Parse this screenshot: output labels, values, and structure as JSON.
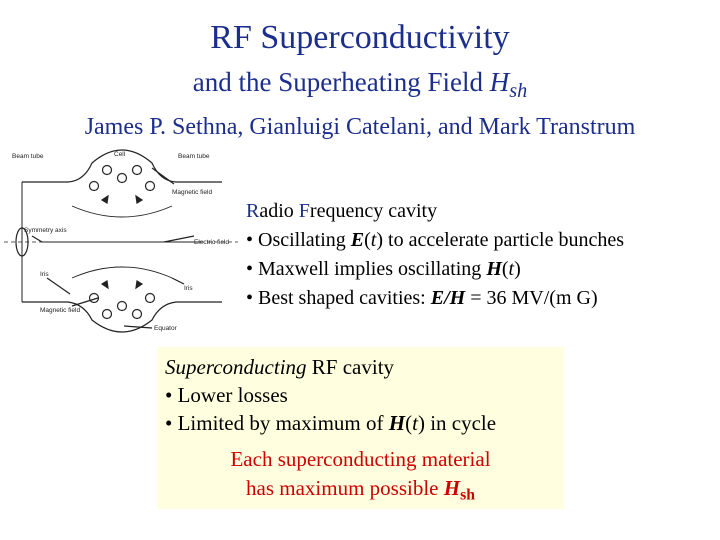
{
  "title": "RF Superconductivity",
  "subtitle": {
    "text": "and the Superheating Field ",
    "symbol": "H",
    "symbol_sub": "sh"
  },
  "authors": "James P. Sethna, Gianluigi Catelani, and Mark Transtrum",
  "diagram_labels": {
    "beam_tube_left": "Beam tube",
    "cell": "Cell",
    "beam_tube_right": "Beam tube",
    "magnetic_field_right": "Magnetic field",
    "symmetry_axis": "Symmetry axis",
    "electric_field": "Electric field",
    "iris_left": "Iris",
    "iris_right": "Iris",
    "magnetic_field_bottom": "Magnetic field",
    "equator": "Equator"
  },
  "rf_cavity": {
    "heading": {
      "r": "R",
      "r_rest": "adio ",
      "f": "F",
      "f_rest": "requency cavity"
    },
    "bullet1": {
      "pre": "• Oscillating ",
      "sym": "E",
      "paren": "t",
      "post": " to accelerate particle bunches"
    },
    "bullet2": {
      "pre": "• Maxwell implies oscillating ",
      "sym": "H",
      "paren": "t"
    },
    "bullet3": {
      "pre": "• Best shaped cavities: ",
      "e": "E",
      "slash": "/",
      "h": "H",
      "post": " = 36 MV/(m G)"
    }
  },
  "sc_box": {
    "heading_italic": "Superconducting",
    "heading_rest": " RF cavity",
    "bullet1": "• Lower losses",
    "bullet2": {
      "pre": "• Limited by maximum of ",
      "sym": "H",
      "paren": "t",
      "post": " in cycle"
    },
    "red_line1": "Each superconducting material",
    "red_line2_pre": "has maximum possible ",
    "red_sym": "H",
    "red_sub": "sh"
  }
}
